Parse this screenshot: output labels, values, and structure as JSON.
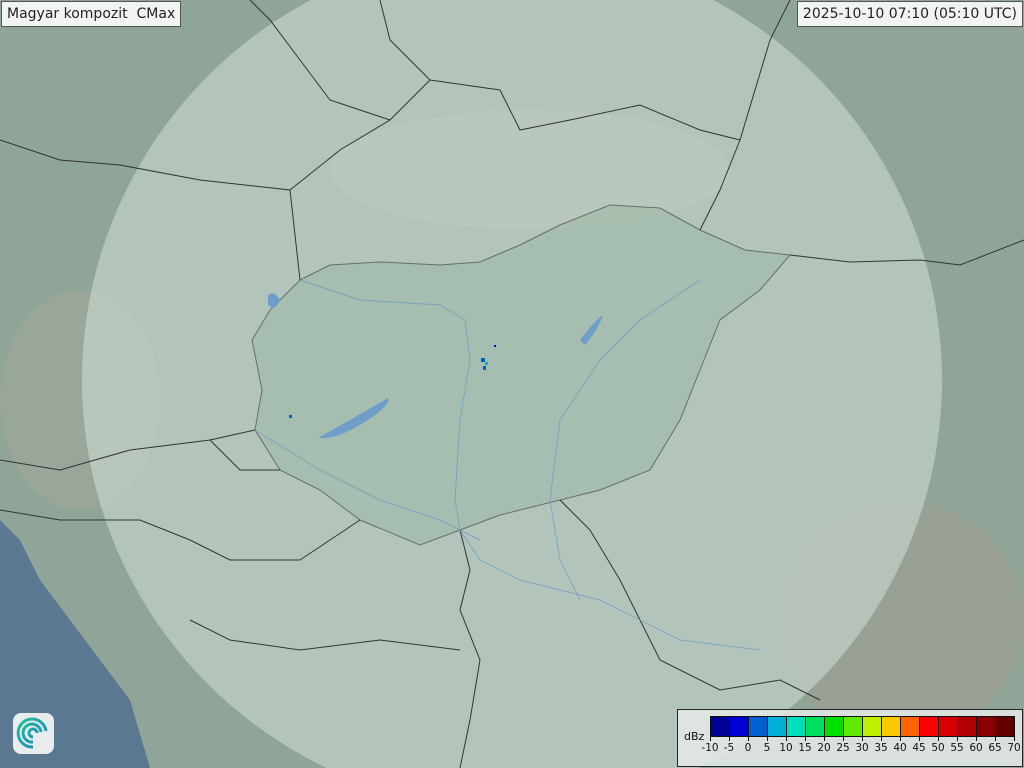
{
  "header": {
    "title": "Magyar kompozit  CMax",
    "timestamp": "2025-10-10 07:10 (05:10 UTC)"
  },
  "legend": {
    "unit": "dBz",
    "tick_labels": [
      "-10",
      "-5",
      "0",
      "5",
      "10",
      "15",
      "20",
      "25",
      "30",
      "35",
      "40",
      "45",
      "50",
      "55",
      "60",
      "65",
      "70"
    ],
    "colors": [
      "#000096",
      "#0000d2",
      "#0060d0",
      "#00b0d8",
      "#00e0b8",
      "#00e060",
      "#00e000",
      "#60ea00",
      "#c0f000",
      "#f8c800",
      "#ff6400",
      "#ff0000",
      "#d80000",
      "#b00000",
      "#880000",
      "#620000"
    ]
  },
  "map": {
    "land_color": "#8fa597",
    "radar_coverage_color": "#c9d8d0",
    "sea_color": "#5a7890",
    "border_color": "#333333",
    "river_color": "#6f9fc8"
  },
  "logo": {
    "icon": "swirl-logo-icon"
  }
}
